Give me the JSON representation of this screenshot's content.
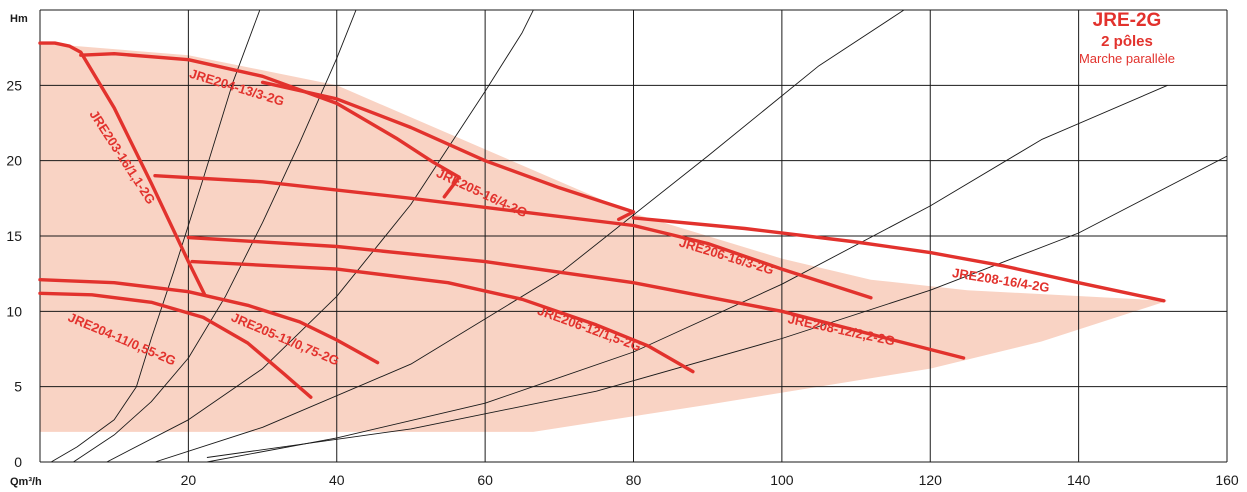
{
  "chart_data": {
    "type": "line",
    "title": "JRE-2G",
    "subtitle": "2 pôles",
    "subtitle2": "Marche parallèle",
    "xlabel": "Qm³/h",
    "ylabel": "Hm",
    "xlim": [
      0,
      160
    ],
    "ylim": [
      0,
      30
    ],
    "x_ticks": [
      0,
      20,
      40,
      60,
      80,
      100,
      120,
      140,
      160
    ],
    "y_ticks": [
      0,
      5,
      10,
      15,
      20,
      25
    ],
    "grid": true,
    "colors": {
      "curve": "#e2322d",
      "area": "#f9d3c4",
      "system": "#1a1a1a",
      "grid": "#1a1a1a"
    },
    "operating_area": [
      [
        0,
        2
      ],
      [
        66.5,
        2
      ],
      [
        90,
        3.8
      ],
      [
        120,
        6.2
      ],
      [
        135,
        8
      ],
      [
        152,
        10.7
      ],
      [
        152,
        10.7
      ],
      [
        125,
        11.4
      ],
      [
        112,
        12.1
      ],
      [
        100,
        13.5
      ],
      [
        80,
        16.5
      ],
      [
        40,
        25
      ],
      [
        20,
        27
      ],
      [
        0,
        27.8
      ]
    ],
    "series": [
      {
        "name": "JRE203-16/1,1-2G",
        "label_x": 11,
        "label_y": 20.2,
        "label_angle": 57,
        "points": [
          [
            0,
            27.8
          ],
          [
            2,
            27.8
          ],
          [
            4,
            27.6
          ],
          [
            5.5,
            27.2
          ],
          [
            10,
            23.5
          ],
          [
            15,
            18.5
          ],
          [
            20,
            13.3
          ],
          [
            22.2,
            11.1
          ]
        ]
      },
      {
        "name": "JRE204-13/3-2G",
        "label_x": 26.5,
        "label_y": 24.8,
        "label_angle": 17,
        "points": [
          [
            5.5,
            27
          ],
          [
            10,
            27.1
          ],
          [
            20,
            26.7
          ],
          [
            30,
            25.6
          ],
          [
            40,
            23.8
          ],
          [
            48,
            21.5
          ],
          [
            53,
            19.9
          ],
          [
            56.5,
            18.9
          ],
          [
            54.5,
            17.6
          ]
        ]
      },
      {
        "name": "JRE205-16/4-2G",
        "label_x": 59.5,
        "label_y": 17.8,
        "label_angle": 25,
        "points": [
          [
            30,
            25.2
          ],
          [
            40,
            24.1
          ],
          [
            50,
            22.2
          ],
          [
            60,
            20
          ],
          [
            70,
            18.2
          ],
          [
            80,
            16.6
          ],
          [
            78,
            16.1
          ]
        ]
      },
      {
        "name": "JRE206-16/3-2G",
        "label_x": 92.5,
        "label_y": 13.6,
        "label_angle": 17,
        "points": [
          [
            15.5,
            19
          ],
          [
            30,
            18.6
          ],
          [
            50,
            17.5
          ],
          [
            65,
            16.6
          ],
          [
            80,
            15.7
          ],
          [
            90,
            14.5
          ],
          [
            100,
            12.8
          ],
          [
            112,
            10.9
          ]
        ]
      },
      {
        "name": "JRE208-16/4-2G",
        "label_x": 129.5,
        "label_y": 12,
        "label_angle": 9,
        "points": [
          [
            80,
            16.2
          ],
          [
            95,
            15.5
          ],
          [
            110,
            14.6
          ],
          [
            120,
            13.9
          ],
          [
            130,
            13
          ],
          [
            140,
            11.9
          ],
          [
            151.5,
            10.7
          ]
        ]
      },
      {
        "name": "JRE208-12/2,2-2G",
        "label_x": 108,
        "label_y": 8.7,
        "label_angle": 12,
        "points": [
          [
            20,
            14.9
          ],
          [
            40,
            14.3
          ],
          [
            60,
            13.3
          ],
          [
            80,
            11.9
          ],
          [
            100,
            10
          ],
          [
            115,
            8.1
          ],
          [
            124.5,
            6.9
          ]
        ]
      },
      {
        "name": "JRE206-12/1,5-2G",
        "label_x": 74,
        "label_y": 8.8,
        "label_angle": 20,
        "points": [
          [
            20.5,
            13.3
          ],
          [
            40,
            12.8
          ],
          [
            55,
            11.9
          ],
          [
            65,
            10.8
          ],
          [
            75,
            9.1
          ],
          [
            82,
            7.7
          ],
          [
            88,
            6
          ]
        ]
      },
      {
        "name": "JRE205-11/0,75-2G",
        "label_x": 33,
        "label_y": 8.1,
        "label_angle": 23,
        "points": [
          [
            0,
            12.1
          ],
          [
            10,
            11.9
          ],
          [
            20,
            11.3
          ],
          [
            28,
            10.4
          ],
          [
            35,
            9.3
          ],
          [
            40,
            8.1
          ],
          [
            45.5,
            6.6
          ]
        ]
      },
      {
        "name": "JRE204-11/0,55-2G",
        "label_x": 11,
        "label_y": 8.1,
        "label_angle": 23,
        "points": [
          [
            0,
            11.2
          ],
          [
            7,
            11.1
          ],
          [
            15,
            10.6
          ],
          [
            22,
            9.6
          ],
          [
            28,
            7.9
          ],
          [
            33,
            5.8
          ],
          [
            36.5,
            4.3
          ]
        ]
      }
    ],
    "system_curves": [
      {
        "points": [
          [
            1.5,
            0
          ],
          [
            5,
            1
          ],
          [
            10,
            2.8
          ],
          [
            13,
            5
          ],
          [
            15,
            8.2
          ],
          [
            18,
            12.6
          ],
          [
            22,
            18.8
          ],
          [
            26,
            25.2
          ],
          [
            30,
            30.5
          ]
        ]
      },
      {
        "points": [
          [
            4.5,
            0
          ],
          [
            10,
            1.8
          ],
          [
            15,
            4
          ],
          [
            20,
            6.9
          ],
          [
            25,
            11
          ],
          [
            30,
            15.9
          ],
          [
            35,
            21.2
          ],
          [
            40,
            26.8
          ],
          [
            43,
            30.5
          ]
        ]
      },
      {
        "points": [
          [
            9,
            0
          ],
          [
            20,
            2.8
          ],
          [
            30,
            6.2
          ],
          [
            40,
            11
          ],
          [
            50,
            17.1
          ],
          [
            60,
            24.6
          ],
          [
            65,
            28.5
          ],
          [
            67,
            30.5
          ]
        ]
      },
      {
        "points": [
          [
            15.5,
            0
          ],
          [
            30,
            2.3
          ],
          [
            50,
            6.5
          ],
          [
            70,
            12.5
          ],
          [
            90,
            20.3
          ],
          [
            105,
            26.3
          ],
          [
            118,
            30.5
          ]
        ]
      },
      {
        "points": [
          [
            22.5,
            0
          ],
          [
            40,
            1.6
          ],
          [
            60,
            3.9
          ],
          [
            80,
            7.3
          ],
          [
            100,
            11.8
          ],
          [
            120,
            17
          ],
          [
            135,
            21.4
          ],
          [
            152,
            25
          ]
        ]
      },
      {
        "points": [
          [
            22.5,
            0.3
          ],
          [
            50,
            2.2
          ],
          [
            75,
            4.7
          ],
          [
            100,
            8.2
          ],
          [
            120,
            11.4
          ],
          [
            140,
            15.2
          ],
          [
            160,
            20.3
          ]
        ]
      }
    ]
  }
}
